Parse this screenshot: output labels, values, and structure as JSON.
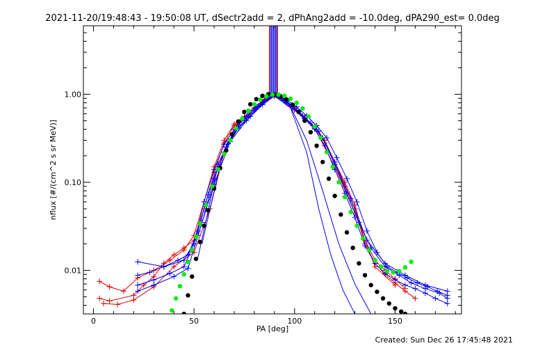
{
  "chart_data": {
    "type": "line",
    "title": "2021-11-20/19:48:43 - 19:50:08 UT, dSectr2add = 2, dPhAng2add = -10.0deg, dPA290_est=  0.0deg",
    "xlabel": "PA [deg]",
    "ylabel": "nflux [#/(cm^2 s sr MeV)]",
    "footer": "Created: Sun Dec 26 17:45:48 2021",
    "xlim": [
      -5,
      183
    ],
    "ylim": [
      0.0032,
      6.0
    ],
    "yscale": "log",
    "grid": false,
    "x_ticks": [
      0,
      50,
      100,
      150
    ],
    "x_tick_labels": [
      "0",
      "50",
      "100",
      "150"
    ],
    "y_ticks": [
      0.01,
      0.1,
      1.0
    ],
    "y_tick_labels": [
      "0.01",
      "0.10",
      "1.00"
    ],
    "reference_pa": [
      87.5,
      91.5
    ],
    "colors": {
      "red_traces": "#dd0000",
      "blue_traces": "#0000ee",
      "black_fit": "#000000",
      "green_fit": "#00ee00"
    },
    "series": [
      {
        "color": "red",
        "marker": "plus",
        "style": "line",
        "x": [
          3,
          8,
          20,
          25,
          30,
          35,
          40,
          45,
          50,
          55,
          60,
          65,
          70,
          75,
          80,
          85,
          90,
          95,
          100,
          105,
          110,
          115,
          120,
          125,
          130,
          135,
          140,
          145,
          150,
          155,
          160
        ],
        "y": [
          0.0048,
          0.0045,
          0.0052,
          0.0068,
          0.0085,
          0.012,
          0.015,
          0.018,
          0.022,
          0.05,
          0.13,
          0.28,
          0.44,
          0.53,
          0.68,
          0.86,
          0.97,
          0.87,
          0.68,
          0.53,
          0.42,
          0.28,
          0.16,
          0.09,
          0.05,
          0.02,
          0.012,
          0.009,
          0.0072,
          0.0058,
          0.0048
        ]
      },
      {
        "color": "red",
        "marker": "plus",
        "style": "line",
        "x": [
          3,
          8,
          15,
          22,
          30,
          38,
          45,
          50,
          55,
          60,
          65,
          70,
          75,
          80,
          85,
          90,
          95,
          100,
          105,
          110,
          115,
          120,
          125,
          130,
          135,
          140,
          145,
          150,
          155
        ],
        "y": [
          0.0075,
          0.0065,
          0.0058,
          0.0082,
          0.01,
          0.013,
          0.017,
          0.025,
          0.06,
          0.15,
          0.3,
          0.46,
          0.56,
          0.71,
          0.88,
          0.99,
          0.88,
          0.7,
          0.55,
          0.43,
          0.3,
          0.17,
          0.1,
          0.055,
          0.022,
          0.013,
          0.01,
          0.008,
          0.0062
        ]
      },
      {
        "color": "red",
        "marker": "plus",
        "style": "line",
        "x": [
          5,
          12,
          20,
          30,
          40,
          50,
          58,
          65,
          72,
          80,
          90,
          100,
          110,
          120,
          130,
          140,
          150
        ],
        "y": [
          0.0042,
          0.0041,
          0.0046,
          0.0065,
          0.011,
          0.016,
          0.05,
          0.22,
          0.45,
          0.65,
          0.95,
          0.66,
          0.41,
          0.15,
          0.045,
          0.011,
          0.0068
        ]
      },
      {
        "color": "blue",
        "marker": "plus",
        "style": "line",
        "x": [
          22,
          28,
          35,
          42,
          47,
          52,
          57,
          62,
          67,
          72,
          77,
          82,
          87,
          91,
          96,
          101,
          106,
          111,
          116,
          121,
          126,
          131,
          136,
          141,
          146,
          151,
          156,
          161,
          166,
          171,
          176
        ],
        "y": [
          0.0088,
          0.0095,
          0.011,
          0.013,
          0.015,
          0.028,
          0.072,
          0.16,
          0.29,
          0.42,
          0.55,
          0.72,
          0.92,
          0.98,
          0.87,
          0.72,
          0.57,
          0.44,
          0.32,
          0.19,
          0.11,
          0.06,
          0.028,
          0.016,
          0.011,
          0.0095,
          0.0082,
          0.0072,
          0.0065,
          0.0058,
          0.0052
        ]
      },
      {
        "color": "blue",
        "marker": "plus",
        "style": "line",
        "x": [
          22,
          30,
          38,
          45,
          50,
          55,
          60,
          65,
          70,
          75,
          80,
          85,
          90,
          95,
          100,
          105,
          110,
          115,
          120,
          125,
          130,
          135,
          140,
          145,
          150,
          155,
          160,
          165,
          170,
          176
        ],
        "y": [
          0.0068,
          0.0078,
          0.0092,
          0.011,
          0.02,
          0.06,
          0.14,
          0.27,
          0.4,
          0.52,
          0.68,
          0.85,
          0.96,
          0.85,
          0.68,
          0.53,
          0.4,
          0.26,
          0.14,
          0.075,
          0.04,
          0.019,
          0.012,
          0.0092,
          0.0078,
          0.0068,
          0.0062,
          0.0055,
          0.0048,
          0.0042
        ]
      },
      {
        "color": "blue",
        "marker": "plus",
        "style": "line",
        "x": [
          22,
          30,
          40,
          47,
          54,
          60,
          66,
          72,
          78,
          84,
          90,
          96,
          102,
          108,
          114,
          120,
          126,
          132,
          138,
          145,
          152,
          158,
          165,
          172,
          176
        ],
        "y": [
          0.0058,
          0.0068,
          0.0085,
          0.0105,
          0.035,
          0.11,
          0.25,
          0.41,
          0.56,
          0.78,
          0.99,
          0.84,
          0.64,
          0.47,
          0.32,
          0.16,
          0.075,
          0.035,
          0.018,
          0.011,
          0.0088,
          0.0072,
          0.0062,
          0.0055,
          0.0048
        ]
      },
      {
        "color": "blue",
        "marker": "plus",
        "style": "line",
        "x": [
          22,
          35,
          45,
          52,
          60,
          68,
          76,
          84,
          90,
          96,
          104,
          112,
          120,
          128,
          136,
          145,
          155,
          165,
          176
        ],
        "y": [
          0.0125,
          0.011,
          0.013,
          0.025,
          0.095,
          0.29,
          0.5,
          0.76,
          0.97,
          0.8,
          0.57,
          0.38,
          0.17,
          0.065,
          0.022,
          0.012,
          0.0088,
          0.0068,
          0.0058
        ]
      },
      {
        "color": "blue",
        "marker": "none",
        "style": "line",
        "x": [
          52,
          62,
          72,
          82,
          90,
          98,
          106,
          112,
          118,
          124,
          130
        ],
        "y": [
          0.014,
          0.16,
          0.48,
          0.78,
          0.96,
          0.7,
          0.22,
          0.05,
          0.015,
          0.006,
          0.0032
        ]
      },
      {
        "color": "blue",
        "marker": "none",
        "style": "line",
        "x": [
          54,
          64,
          74,
          84,
          90,
          98,
          106,
          114,
          122,
          130,
          138
        ],
        "y": [
          0.02,
          0.2,
          0.52,
          0.8,
          0.95,
          0.72,
          0.3,
          0.08,
          0.02,
          0.007,
          0.0032
        ]
      },
      {
        "color": "blue",
        "marker": "none",
        "style": "line",
        "x": [
          87.5,
          88.5,
          89.5,
          90.5,
          91.5
        ],
        "y": [
          6.0,
          6.0,
          6.0,
          6.0,
          6.0
        ]
      },
      {
        "color": "black",
        "marker": "dot",
        "style": "points",
        "x": [
          45,
          47,
          49,
          51,
          53,
          55,
          57,
          60,
          63,
          66,
          69,
          72,
          75,
          78,
          81,
          84,
          87,
          90,
          93,
          96,
          99,
          102,
          105,
          108,
          111,
          114,
          117,
          120,
          123,
          126,
          129,
          132,
          135,
          138,
          141,
          144,
          147,
          150,
          153,
          155
        ],
        "y": [
          0.0032,
          0.0052,
          0.0085,
          0.0135,
          0.021,
          0.032,
          0.048,
          0.085,
          0.145,
          0.23,
          0.35,
          0.49,
          0.63,
          0.77,
          0.88,
          0.96,
          1.0,
          0.99,
          0.95,
          0.87,
          0.76,
          0.63,
          0.5,
          0.37,
          0.26,
          0.17,
          0.11,
          0.07,
          0.043,
          0.027,
          0.018,
          0.012,
          0.0088,
          0.0068,
          0.0057,
          0.0048,
          0.0042,
          0.0037,
          0.0034,
          0.0032
        ]
      },
      {
        "color": "green",
        "marker": "dot",
        "style": "points",
        "x": [
          39,
          41,
          43,
          45,
          47,
          49,
          51,
          53,
          56,
          59,
          62,
          65,
          68,
          71,
          74,
          77,
          80,
          83,
          86,
          89,
          92,
          95,
          98,
          101,
          104,
          107,
          110,
          113,
          116,
          119,
          122,
          125,
          128,
          131,
          134,
          137,
          140,
          143,
          146,
          149,
          152,
          155,
          158
        ],
        "y": [
          0.0035,
          0.0048,
          0.0066,
          0.009,
          0.0125,
          0.017,
          0.024,
          0.034,
          0.055,
          0.09,
          0.14,
          0.21,
          0.3,
          0.41,
          0.53,
          0.65,
          0.77,
          0.87,
          0.95,
          0.99,
          0.99,
          0.96,
          0.89,
          0.8,
          0.69,
          0.56,
          0.43,
          0.32,
          0.22,
          0.15,
          0.1,
          0.068,
          0.046,
          0.032,
          0.023,
          0.017,
          0.013,
          0.011,
          0.0098,
          0.0095,
          0.0098,
          0.0108,
          0.0125
        ]
      }
    ]
  }
}
